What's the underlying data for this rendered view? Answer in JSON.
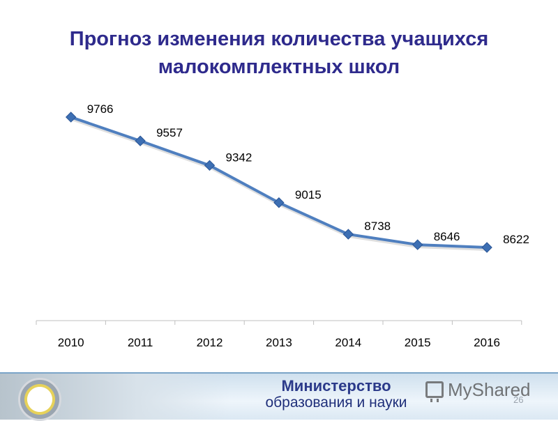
{
  "title_line1": "Прогноз изменения количества учащихся",
  "title_line2": "малокомплектных школ",
  "chart_data": {
    "type": "line",
    "title": "Прогноз изменения количества учащихся малокомплектных школ",
    "categories": [
      "2010",
      "2011",
      "2012",
      "2013",
      "2014",
      "2015",
      "2016"
    ],
    "values": [
      9766,
      9557,
      9342,
      9015,
      8738,
      8646,
      8622
    ],
    "data_labels": [
      "9766",
      "9557",
      "9342",
      "9015",
      "8738",
      "8646",
      "8622"
    ],
    "line_color": "#4f7fbf",
    "marker": "diamond",
    "grid": false
  },
  "footer": {
    "ministry_line1": "Министерство",
    "ministry_line2": "образования и науки",
    "watermark": "MyShared",
    "page_number": "26"
  },
  "colors": {
    "title": "#2e2a8c",
    "axis": "#bfbfbf",
    "label": "#000000"
  }
}
